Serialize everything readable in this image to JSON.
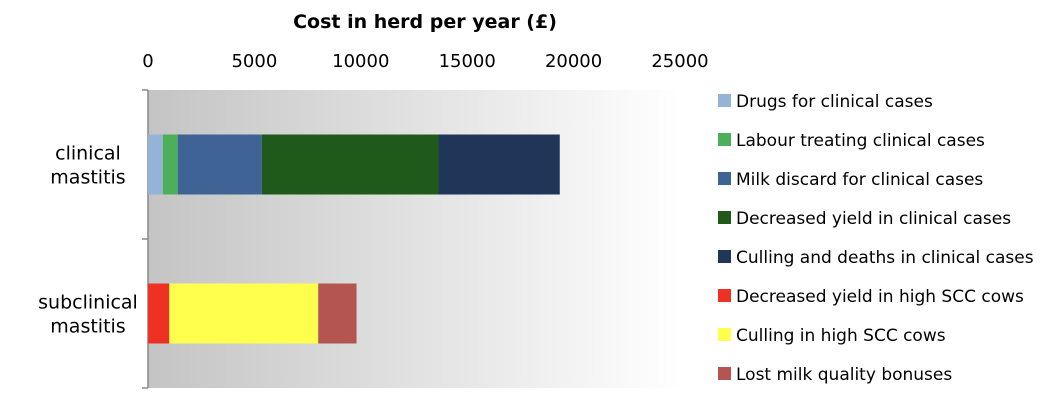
{
  "chart_data": {
    "type": "bar",
    "orientation": "horizontal",
    "stacked": true,
    "title": "Cost in herd per year (£)",
    "xlim": [
      0,
      25000
    ],
    "xticks": [
      0,
      5000,
      10000,
      15000,
      20000,
      25000
    ],
    "categories": [
      [
        "clinical",
        "mastitis"
      ],
      [
        "subclinical",
        "mastitis"
      ]
    ],
    "series": [
      {
        "name": "Drugs for clinical cases",
        "color": "#95b3d7",
        "values": [
          700,
          0
        ]
      },
      {
        "name": "Labour treating clinical cases",
        "color": "#4caf5a",
        "values": [
          700,
          0
        ]
      },
      {
        "name": "Milk discard for clinical cases",
        "color": "#3e6394",
        "values": [
          3950,
          0
        ]
      },
      {
        "name": "Decreased yield in clinical cases",
        "color": "#205a1a",
        "values": [
          8300,
          0
        ]
      },
      {
        "name": "Culling and deaths in clinical cases",
        "color": "#1f3658",
        "values": [
          5700,
          0
        ]
      },
      {
        "name": "Decreased yield in high SCC cows",
        "color": "#ee3124",
        "values": [
          0,
          1000
        ]
      },
      {
        "name": "Culling in high SCC cows",
        "color": "#ffff4d",
        "values": [
          0,
          7000
        ]
      },
      {
        "name": "Lost milk quality bonuses",
        "color": "#b45551",
        "values": [
          0,
          1800
        ]
      }
    ],
    "legend_position": "right",
    "grid": false,
    "plot_background": "gradient grey to white"
  }
}
